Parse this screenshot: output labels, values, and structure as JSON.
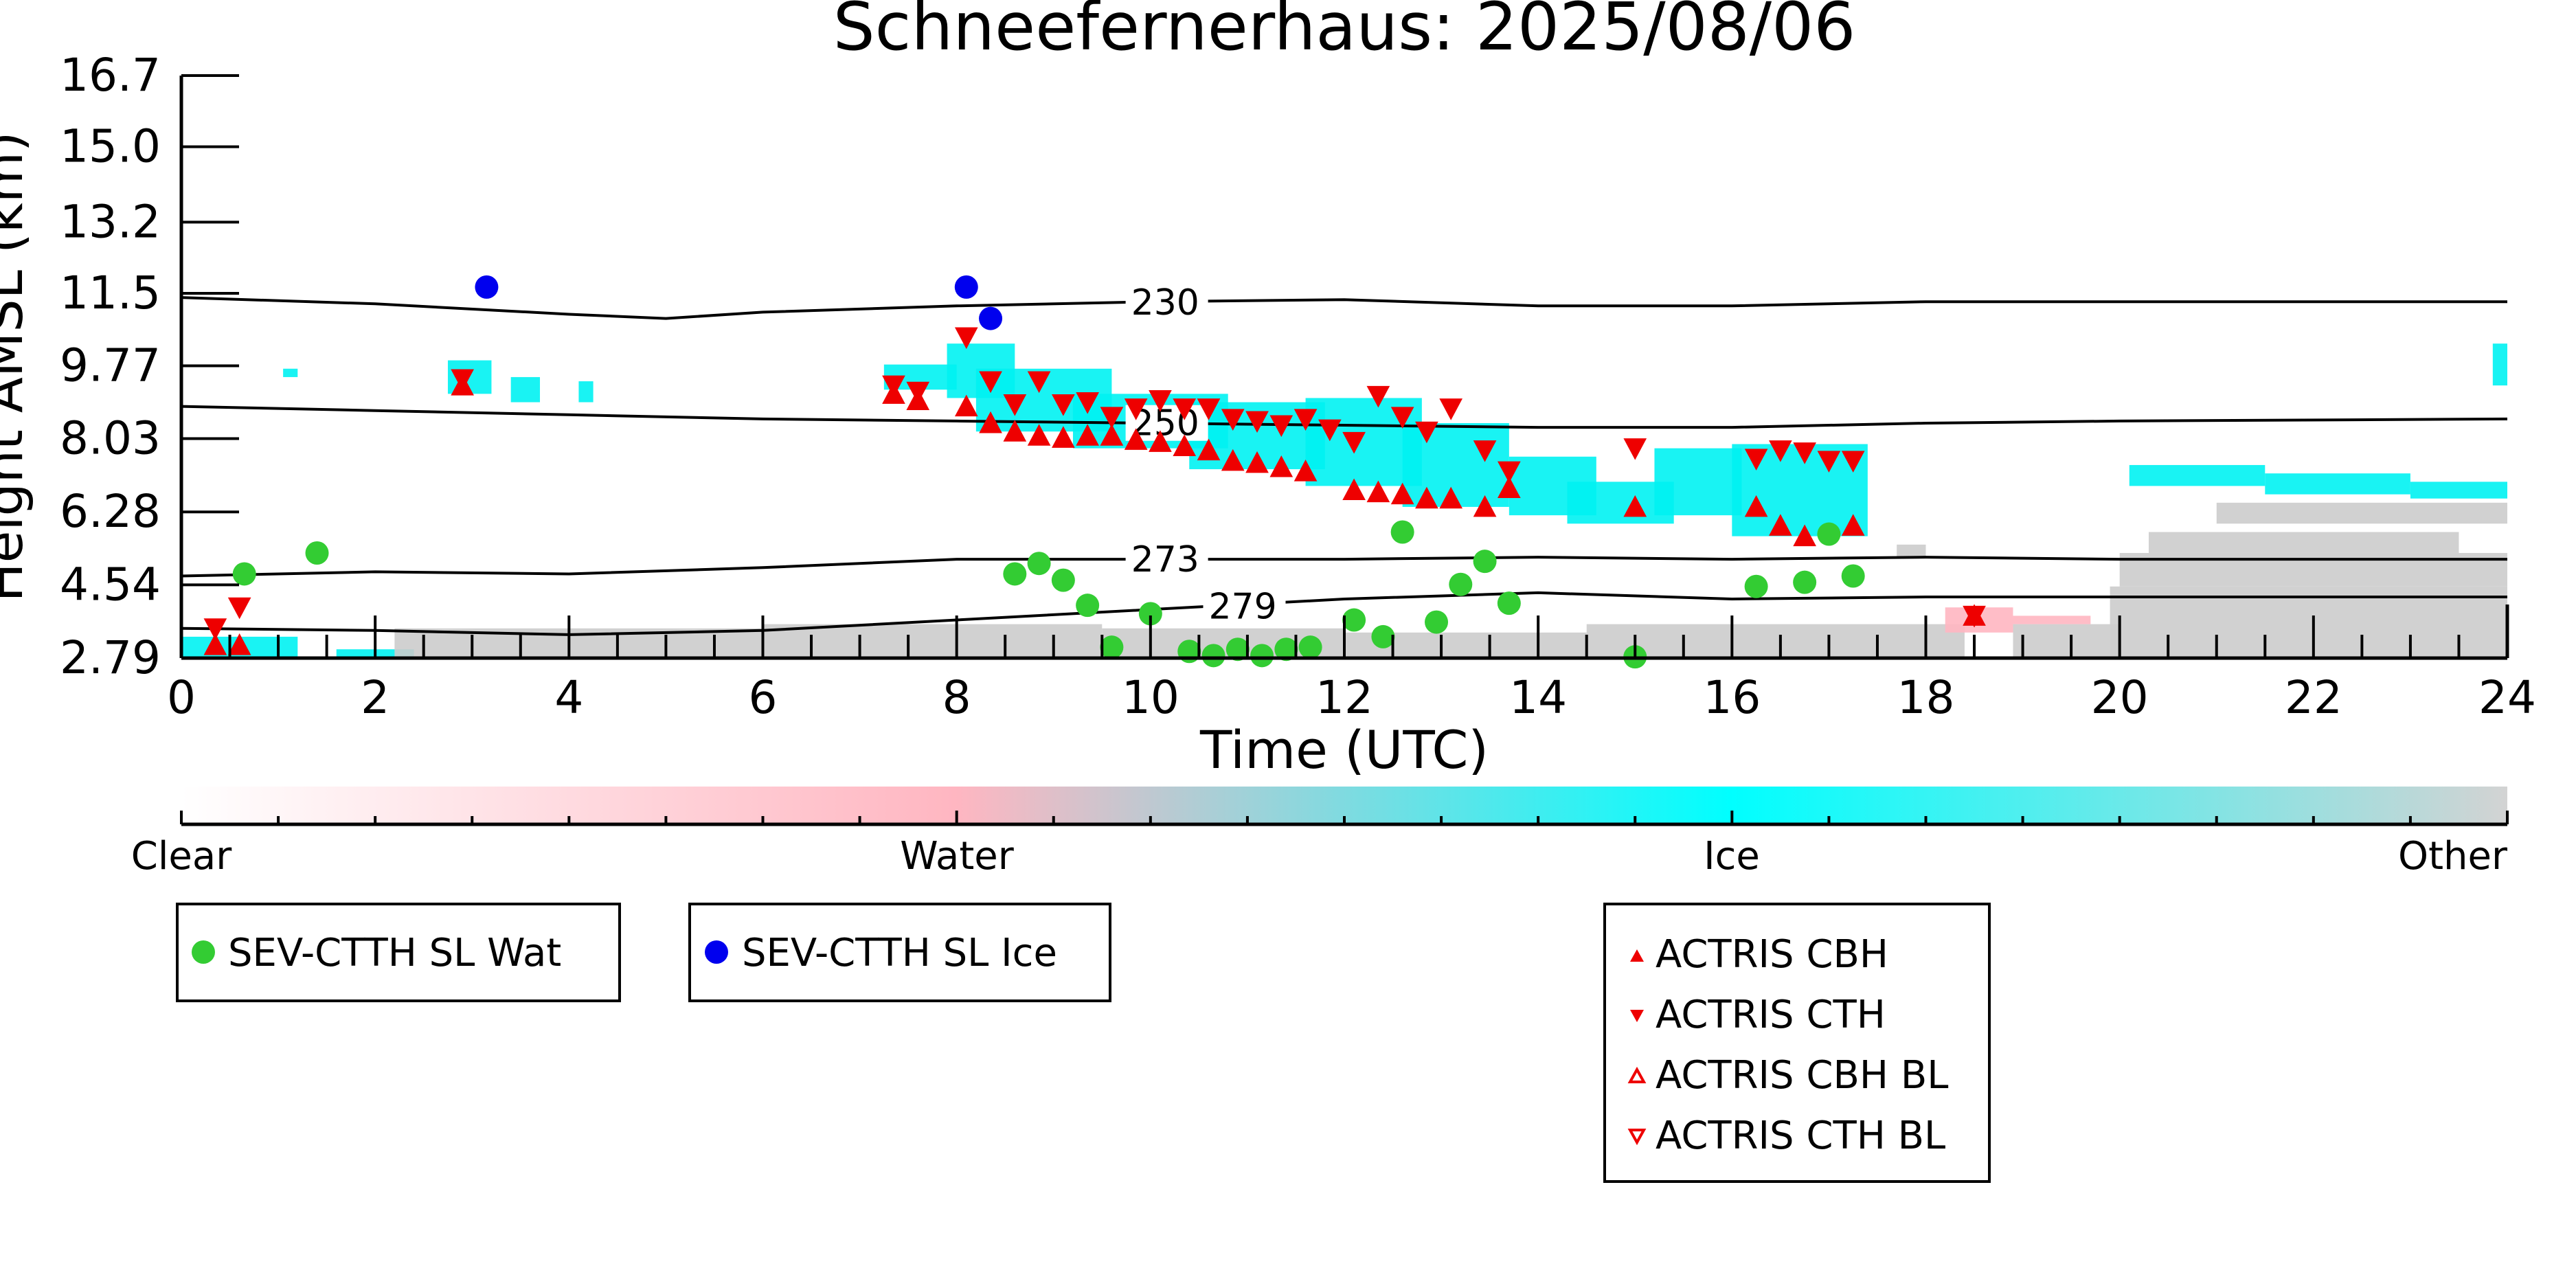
{
  "chart_data": {
    "type": "scatter",
    "title": "Schneefernerhaus: 2025/08/06",
    "xlabel": "Time (UTC)",
    "ylabel": "Height AMSL (km)",
    "xlim": [
      0,
      24
    ],
    "ylim": [
      2.79,
      16.7
    ],
    "xticks": [
      "0",
      "2",
      "4",
      "6",
      "8",
      "10",
      "12",
      "14",
      "16",
      "18",
      "20",
      "22",
      "24"
    ],
    "yticks": [
      "2.79",
      "4.54",
      "6.28",
      "8.03",
      "9.77",
      "11.5",
      "13.2",
      "15.0",
      "16.7"
    ],
    "ytick_values": [
      2.79,
      4.54,
      6.28,
      8.03,
      9.77,
      11.5,
      13.2,
      15.0,
      16.7
    ],
    "colorbar": {
      "labels": [
        "Clear",
        "Water",
        "Ice",
        "Other"
      ],
      "colors": [
        "#ffffff",
        "#ffb6c1",
        "#00ffff",
        "#d3d3d3"
      ]
    },
    "colors": {
      "water_marker": "#33cc33",
      "ice_marker": "#0000ee",
      "actris": "#ee0000",
      "cloud_ice": "#00f2f2",
      "cloud_other": "#cccccc",
      "cloud_water": "#ffb6c1"
    },
    "contours": [
      {
        "label": "230",
        "label_x": 9.8,
        "points": [
          [
            0,
            11.4
          ],
          [
            2,
            11.25
          ],
          [
            4,
            11.0
          ],
          [
            5,
            10.9
          ],
          [
            6,
            11.05
          ],
          [
            8,
            11.2
          ],
          [
            10,
            11.3
          ],
          [
            12,
            11.35
          ],
          [
            14,
            11.2
          ],
          [
            16,
            11.2
          ],
          [
            18,
            11.3
          ],
          [
            20,
            11.3
          ],
          [
            24,
            11.3
          ]
        ]
      },
      {
        "label": "250",
        "label_x": 9.8,
        "points": [
          [
            0,
            8.8
          ],
          [
            2,
            8.7
          ],
          [
            4,
            8.6
          ],
          [
            6,
            8.5
          ],
          [
            8,
            8.45
          ],
          [
            10,
            8.4
          ],
          [
            12,
            8.35
          ],
          [
            14,
            8.3
          ],
          [
            16,
            8.3
          ],
          [
            18,
            8.4
          ],
          [
            20,
            8.45
          ],
          [
            24,
            8.5
          ]
        ]
      },
      {
        "label": "273",
        "label_x": 9.8,
        "points": [
          [
            0,
            4.75
          ],
          [
            2,
            4.85
          ],
          [
            4,
            4.8
          ],
          [
            6,
            4.95
          ],
          [
            8,
            5.15
          ],
          [
            10,
            5.15
          ],
          [
            12,
            5.15
          ],
          [
            14,
            5.2
          ],
          [
            16,
            5.15
          ],
          [
            18,
            5.2
          ],
          [
            20,
            5.15
          ],
          [
            24,
            5.15
          ]
        ]
      },
      {
        "label": "279",
        "label_x": 10.6,
        "points": [
          [
            0,
            3.5
          ],
          [
            2,
            3.45
          ],
          [
            4,
            3.35
          ],
          [
            6,
            3.45
          ],
          [
            8,
            3.7
          ],
          [
            10,
            3.95
          ],
          [
            12,
            4.2
          ],
          [
            14,
            4.35
          ],
          [
            16,
            4.2
          ],
          [
            18,
            4.25
          ],
          [
            20,
            4.25
          ],
          [
            24,
            4.25
          ]
        ]
      }
    ],
    "series": [
      {
        "name": "SEV-CTTH SL Wat",
        "marker": "circle",
        "x": [
          0.65,
          1.4,
          8.6,
          8.85,
          9.1,
          9.35,
          9.6,
          10.0,
          10.4,
          10.65,
          10.9,
          11.15,
          11.4,
          11.65,
          12.1,
          12.4,
          12.6,
          12.95,
          13.2,
          13.45,
          13.7,
          15.0,
          16.25,
          16.75,
          17.0,
          17.25
        ],
        "y": [
          4.8,
          5.3,
          4.8,
          5.05,
          4.65,
          4.05,
          3.05,
          3.85,
          2.95,
          2.85,
          3.0,
          2.85,
          3.0,
          3.05,
          3.7,
          3.3,
          5.8,
          3.65,
          4.55,
          5.1,
          4.1,
          2.82,
          4.5,
          4.6,
          5.75,
          4.75
        ]
      },
      {
        "name": "SEV-CTTH SL Ice",
        "marker": "circle",
        "x": [
          3.15,
          8.1,
          8.35
        ],
        "y": [
          11.65,
          11.65,
          10.9
        ]
      },
      {
        "name": "ACTRIS CBH",
        "marker": "triangle-up",
        "x": [
          0.35,
          0.6,
          2.9,
          7.35,
          7.6,
          8.1,
          8.35,
          8.6,
          8.85,
          9.1,
          9.35,
          9.6,
          9.85,
          10.1,
          10.35,
          10.6,
          10.85,
          11.1,
          11.35,
          11.6,
          12.1,
          12.35,
          12.6,
          12.85,
          13.1,
          13.45,
          13.7,
          15.0,
          16.25,
          16.5,
          16.75,
          17.25,
          18.5
        ],
        "y": [
          3.1,
          3.1,
          9.3,
          9.1,
          8.95,
          8.8,
          8.4,
          8.2,
          8.1,
          8.05,
          8.1,
          8.1,
          8.0,
          7.95,
          7.85,
          7.75,
          7.5,
          7.45,
          7.35,
          7.25,
          6.8,
          6.75,
          6.7,
          6.6,
          6.6,
          6.4,
          6.85,
          6.4,
          6.4,
          5.95,
          5.7,
          5.95,
          3.8
        ]
      },
      {
        "name": "ACTRIS CTH",
        "marker": "triangle-down",
        "x": [
          0.35,
          0.6,
          2.9,
          7.35,
          7.6,
          8.1,
          8.35,
          8.6,
          8.85,
          9.1,
          9.35,
          9.6,
          9.85,
          10.1,
          10.35,
          10.6,
          10.85,
          11.1,
          11.35,
          11.6,
          11.85,
          12.1,
          12.35,
          12.6,
          12.85,
          13.1,
          13.45,
          13.7,
          15.0,
          16.25,
          16.5,
          16.75,
          17.0,
          17.25,
          18.5
        ],
        "y": [
          3.5,
          4.0,
          9.45,
          9.3,
          9.15,
          10.45,
          9.4,
          8.85,
          9.4,
          8.85,
          8.9,
          8.55,
          8.75,
          8.95,
          8.75,
          8.75,
          8.5,
          8.45,
          8.35,
          8.5,
          8.25,
          7.95,
          9.05,
          8.55,
          8.2,
          8.75,
          7.75,
          7.25,
          7.8,
          7.55,
          7.75,
          7.7,
          7.5,
          7.5,
          3.8
        ]
      },
      {
        "name": "ACTRIS CBH BL",
        "marker": "triangle-up-open",
        "x": [],
        "y": []
      },
      {
        "name": "ACTRIS CTH BL",
        "marker": "triangle-down-open",
        "x": [],
        "y": []
      }
    ],
    "legends": [
      {
        "entries": [
          "SEV-CTTH SL Wat"
        ]
      },
      {
        "entries": [
          "SEV-CTTH SL Ice"
        ]
      },
      {
        "entries": [
          "ACTRIS CBH",
          "ACTRIS CTH",
          "ACTRIS CBH BL",
          "ACTRIS CTH BL"
        ]
      }
    ]
  }
}
